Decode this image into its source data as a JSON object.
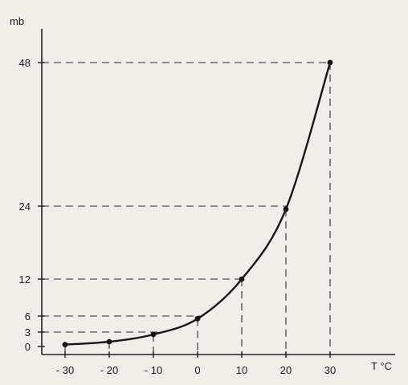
{
  "chart_data": {
    "type": "line",
    "title": "",
    "xlabel": "T °C",
    "ylabel": "mb",
    "xlim": [
      -30,
      30
    ],
    "ylim": [
      0,
      48
    ],
    "x_ticks": [
      -30,
      -20,
      -10,
      0,
      10,
      20,
      30
    ],
    "x_tick_labels": [
      "- 30",
      "- 20",
      "- 10",
      "0",
      "10",
      "20",
      "30"
    ],
    "y_ticks": [
      0,
      3,
      6,
      12,
      24,
      48
    ],
    "y_tick_labels": [
      "0",
      "3",
      "6",
      "12",
      "24",
      "48"
    ],
    "grid": false,
    "series": [
      {
        "x": [
          -30,
          -20,
          -10,
          0,
          10,
          20,
          30
        ],
        "y": [
          0.4,
          1.0,
          2.5,
          5.5,
          12,
          23.5,
          48
        ]
      }
    ],
    "colors": {
      "background": "#f1eeea",
      "ink": "#161616"
    }
  }
}
